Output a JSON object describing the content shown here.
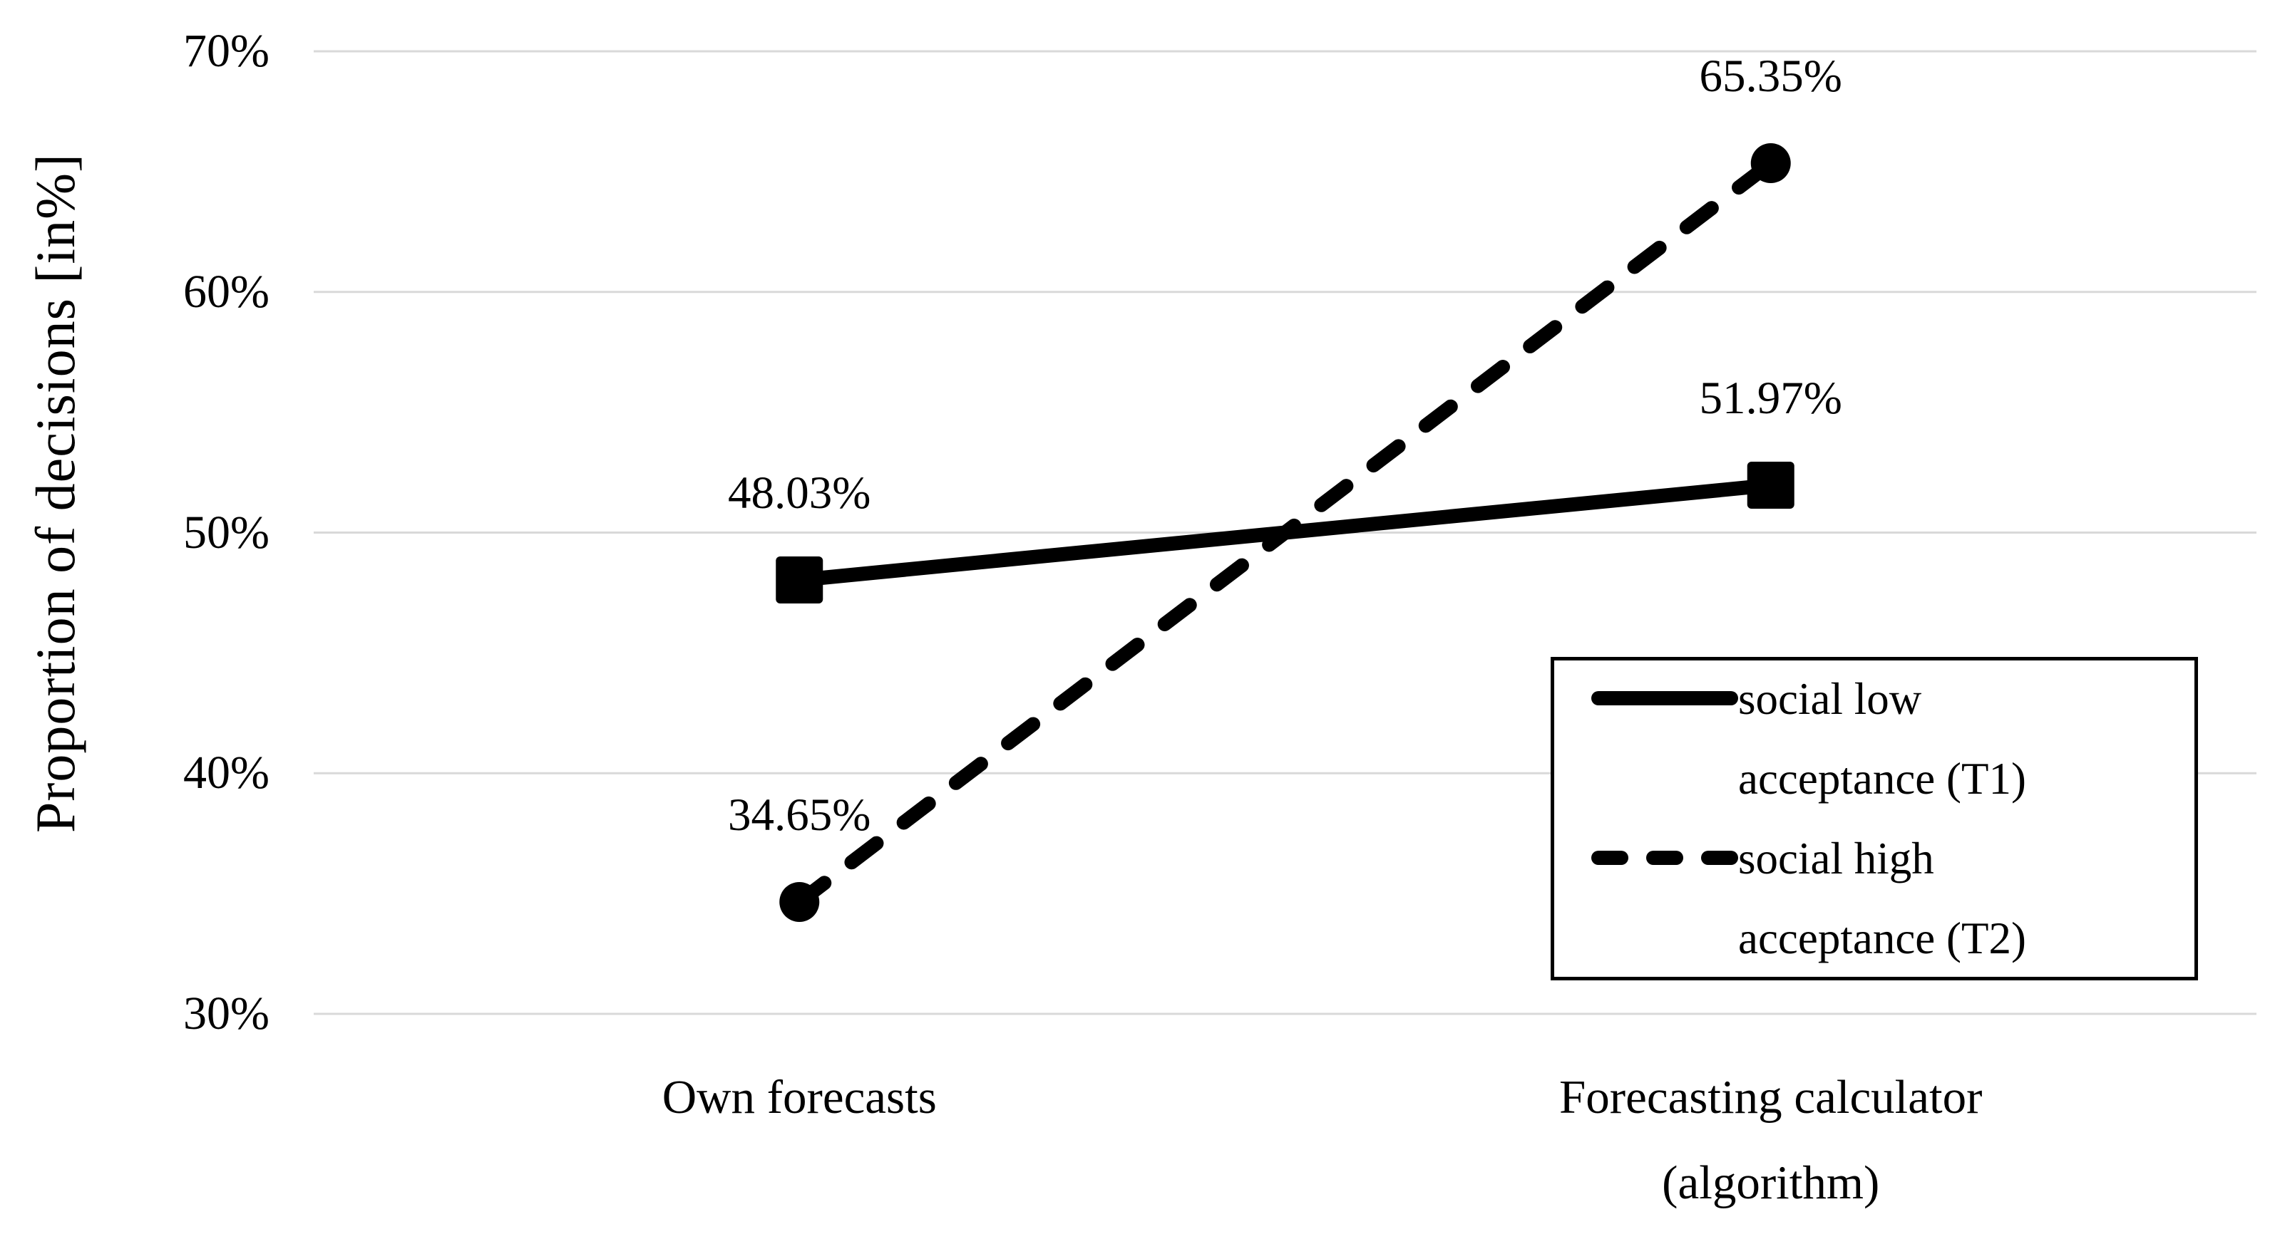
{
  "figure": {
    "background": "#ffffff",
    "text_color": "#000000"
  },
  "chart_data": {
    "type": "line",
    "title": "",
    "ylabel": "Proportion of decisions [in%]",
    "xlabel": "",
    "categories": [
      "Own forecasts",
      "Forecasting calculator (algorithm)"
    ],
    "category_lines": [
      [
        "Own forecasts"
      ],
      [
        "Forecasting calculator",
        "(algorithm)"
      ]
    ],
    "ylim": [
      30,
      70
    ],
    "ytick_step": 10,
    "ytick_values": [
      30,
      40,
      50,
      60,
      70
    ],
    "ytick_labels": [
      "30%",
      "40%",
      "50%",
      "60%",
      "70%"
    ],
    "grid": "horizontal",
    "gridline_color": "#d9d9d9",
    "series_color": "#000000",
    "legend_position": "inside-lower-right",
    "series": [
      {
        "name": "social low acceptance (T1)",
        "legend_lines": [
          "social low",
          "acceptance (T1)"
        ],
        "line_style": "solid",
        "marker": "square",
        "values": [
          48.03,
          51.97
        ],
        "labels": [
          "48.03%",
          "51.97%"
        ]
      },
      {
        "name": "social high acceptance (T2)",
        "legend_lines": [
          "social high",
          "acceptance (T2)"
        ],
        "line_style": "dashed",
        "marker": "circle",
        "values": [
          34.65,
          65.35
        ],
        "labels": [
          "34.65%",
          "65.35%"
        ]
      }
    ]
  }
}
